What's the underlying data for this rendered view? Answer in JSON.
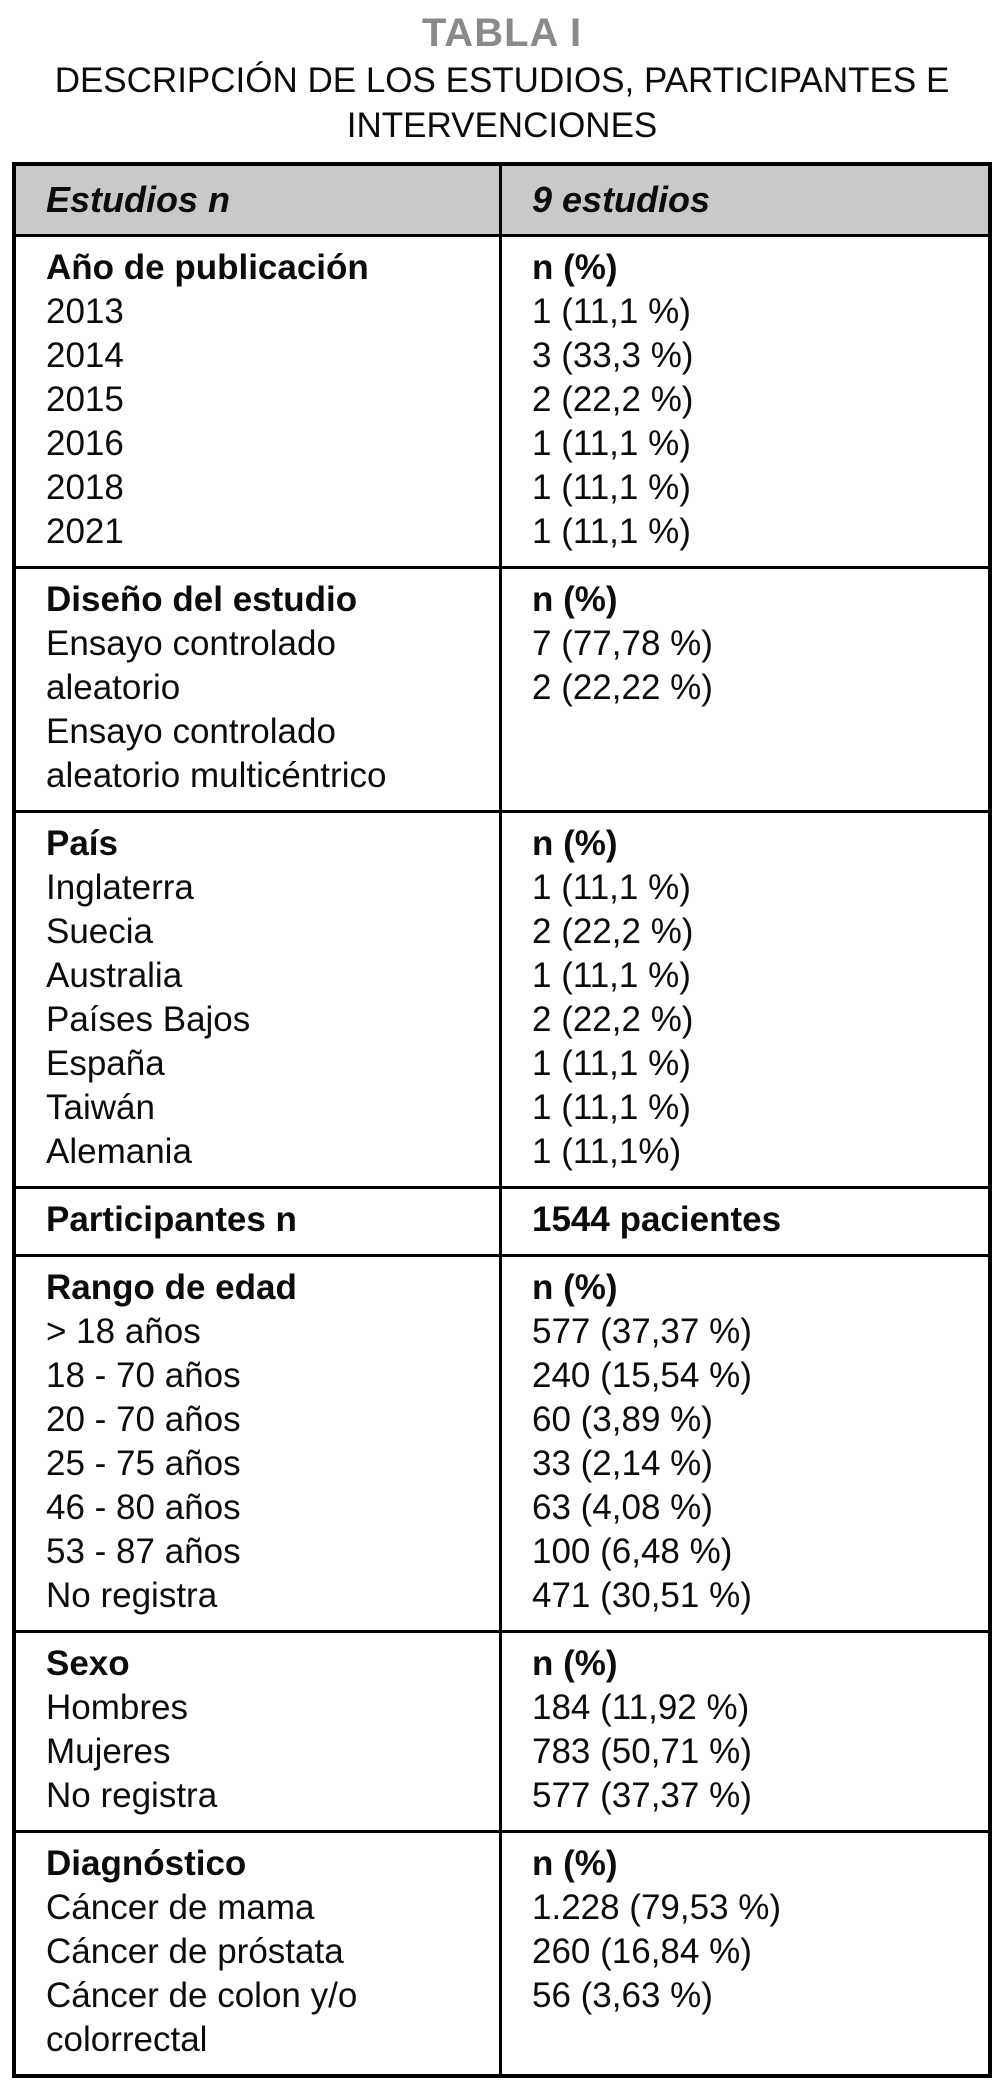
{
  "page": {
    "title": "TABLA I",
    "subtitle": "DESCRIPCIÓN DE LOS ESTUDIOS, PARTICIPANTES E INTERVENCIONES"
  },
  "colors": {
    "title_gray": "#8a8a8a",
    "header_band_bg": "#c9c9c9",
    "border": "#000000",
    "text": "#0c0c0c"
  },
  "table": {
    "header": {
      "left": "Estudios n",
      "right": "9 estudios"
    },
    "sections": [
      {
        "label": "Año de publicación",
        "value_header": "n (%)",
        "rows": [
          {
            "label": "2013",
            "value": "1 (11,1 %)"
          },
          {
            "label": "2014",
            "value": "3 (33,3 %)"
          },
          {
            "label": "2015",
            "value": "2 (22,2 %)"
          },
          {
            "label": "2016",
            "value": "1 (11,1 %)"
          },
          {
            "label": "2018",
            "value": "1 (11,1 %)"
          },
          {
            "label": "2021",
            "value": "1 (11,1 %)"
          }
        ]
      },
      {
        "label": "Diseño del estudio",
        "value_header": "n (%)",
        "rows": [
          {
            "label": "Ensayo controlado aleatorio",
            "value": "7 (77,78 %)"
          },
          {
            "label": "Ensayo controlado aleatorio multicéntrico",
            "value": "2 (22,22 %)"
          }
        ]
      },
      {
        "label": "País",
        "value_header": "n (%)",
        "rows": [
          {
            "label": "Inglaterra",
            "value": "1 (11,1 %)"
          },
          {
            "label": "Suecia",
            "value": "2 (22,2 %)"
          },
          {
            "label": "Australia",
            "value": "1 (11,1 %)"
          },
          {
            "label": "Países Bajos",
            "value": "2 (22,2 %)"
          },
          {
            "label": "España",
            "value": "1 (11,1 %)"
          },
          {
            "label": "Taiwán",
            "value": "1 (11,1 %)"
          },
          {
            "label": "Alemania",
            "value": "1 (11,1%)"
          }
        ]
      },
      {
        "label": "Participantes n",
        "value_header": "1544 pacientes",
        "rows": []
      },
      {
        "label": "Rango de edad",
        "value_header": "n (%)",
        "rows": [
          {
            "label": "> 18 años",
            "value": "577 (37,37 %)"
          },
          {
            "label": "18 - 70 años",
            "value": "240 (15,54 %)"
          },
          {
            "label": "20 - 70 años",
            "value": "60 (3,89 %)"
          },
          {
            "label": "25 - 75 años",
            "value": "33 (2,14 %)"
          },
          {
            "label": "46 - 80 años",
            "value": "63 (4,08 %)"
          },
          {
            "label": "53 - 87 años",
            "value": "100 (6,48 %)"
          },
          {
            "label": "No registra",
            "value": "471 (30,51 %)"
          }
        ]
      },
      {
        "label": "Sexo",
        "value_header": "n (%)",
        "rows": [
          {
            "label": "Hombres",
            "value": "184 (11,92 %)"
          },
          {
            "label": "Mujeres",
            "value": "783 (50,71 %)"
          },
          {
            "label": "No registra",
            "value": "577 (37,37 %)"
          }
        ]
      },
      {
        "label": "Diagnóstico",
        "value_header": "n (%)",
        "rows": [
          {
            "label": "Cáncer de mama",
            "value": "1.228 (79,53 %)"
          },
          {
            "label": "Cáncer de próstata",
            "value": "260 (16,84 %)"
          },
          {
            "label": "Cáncer de colon y/o colorrectal",
            "value": "56 (3,63 %)"
          }
        ]
      }
    ]
  }
}
